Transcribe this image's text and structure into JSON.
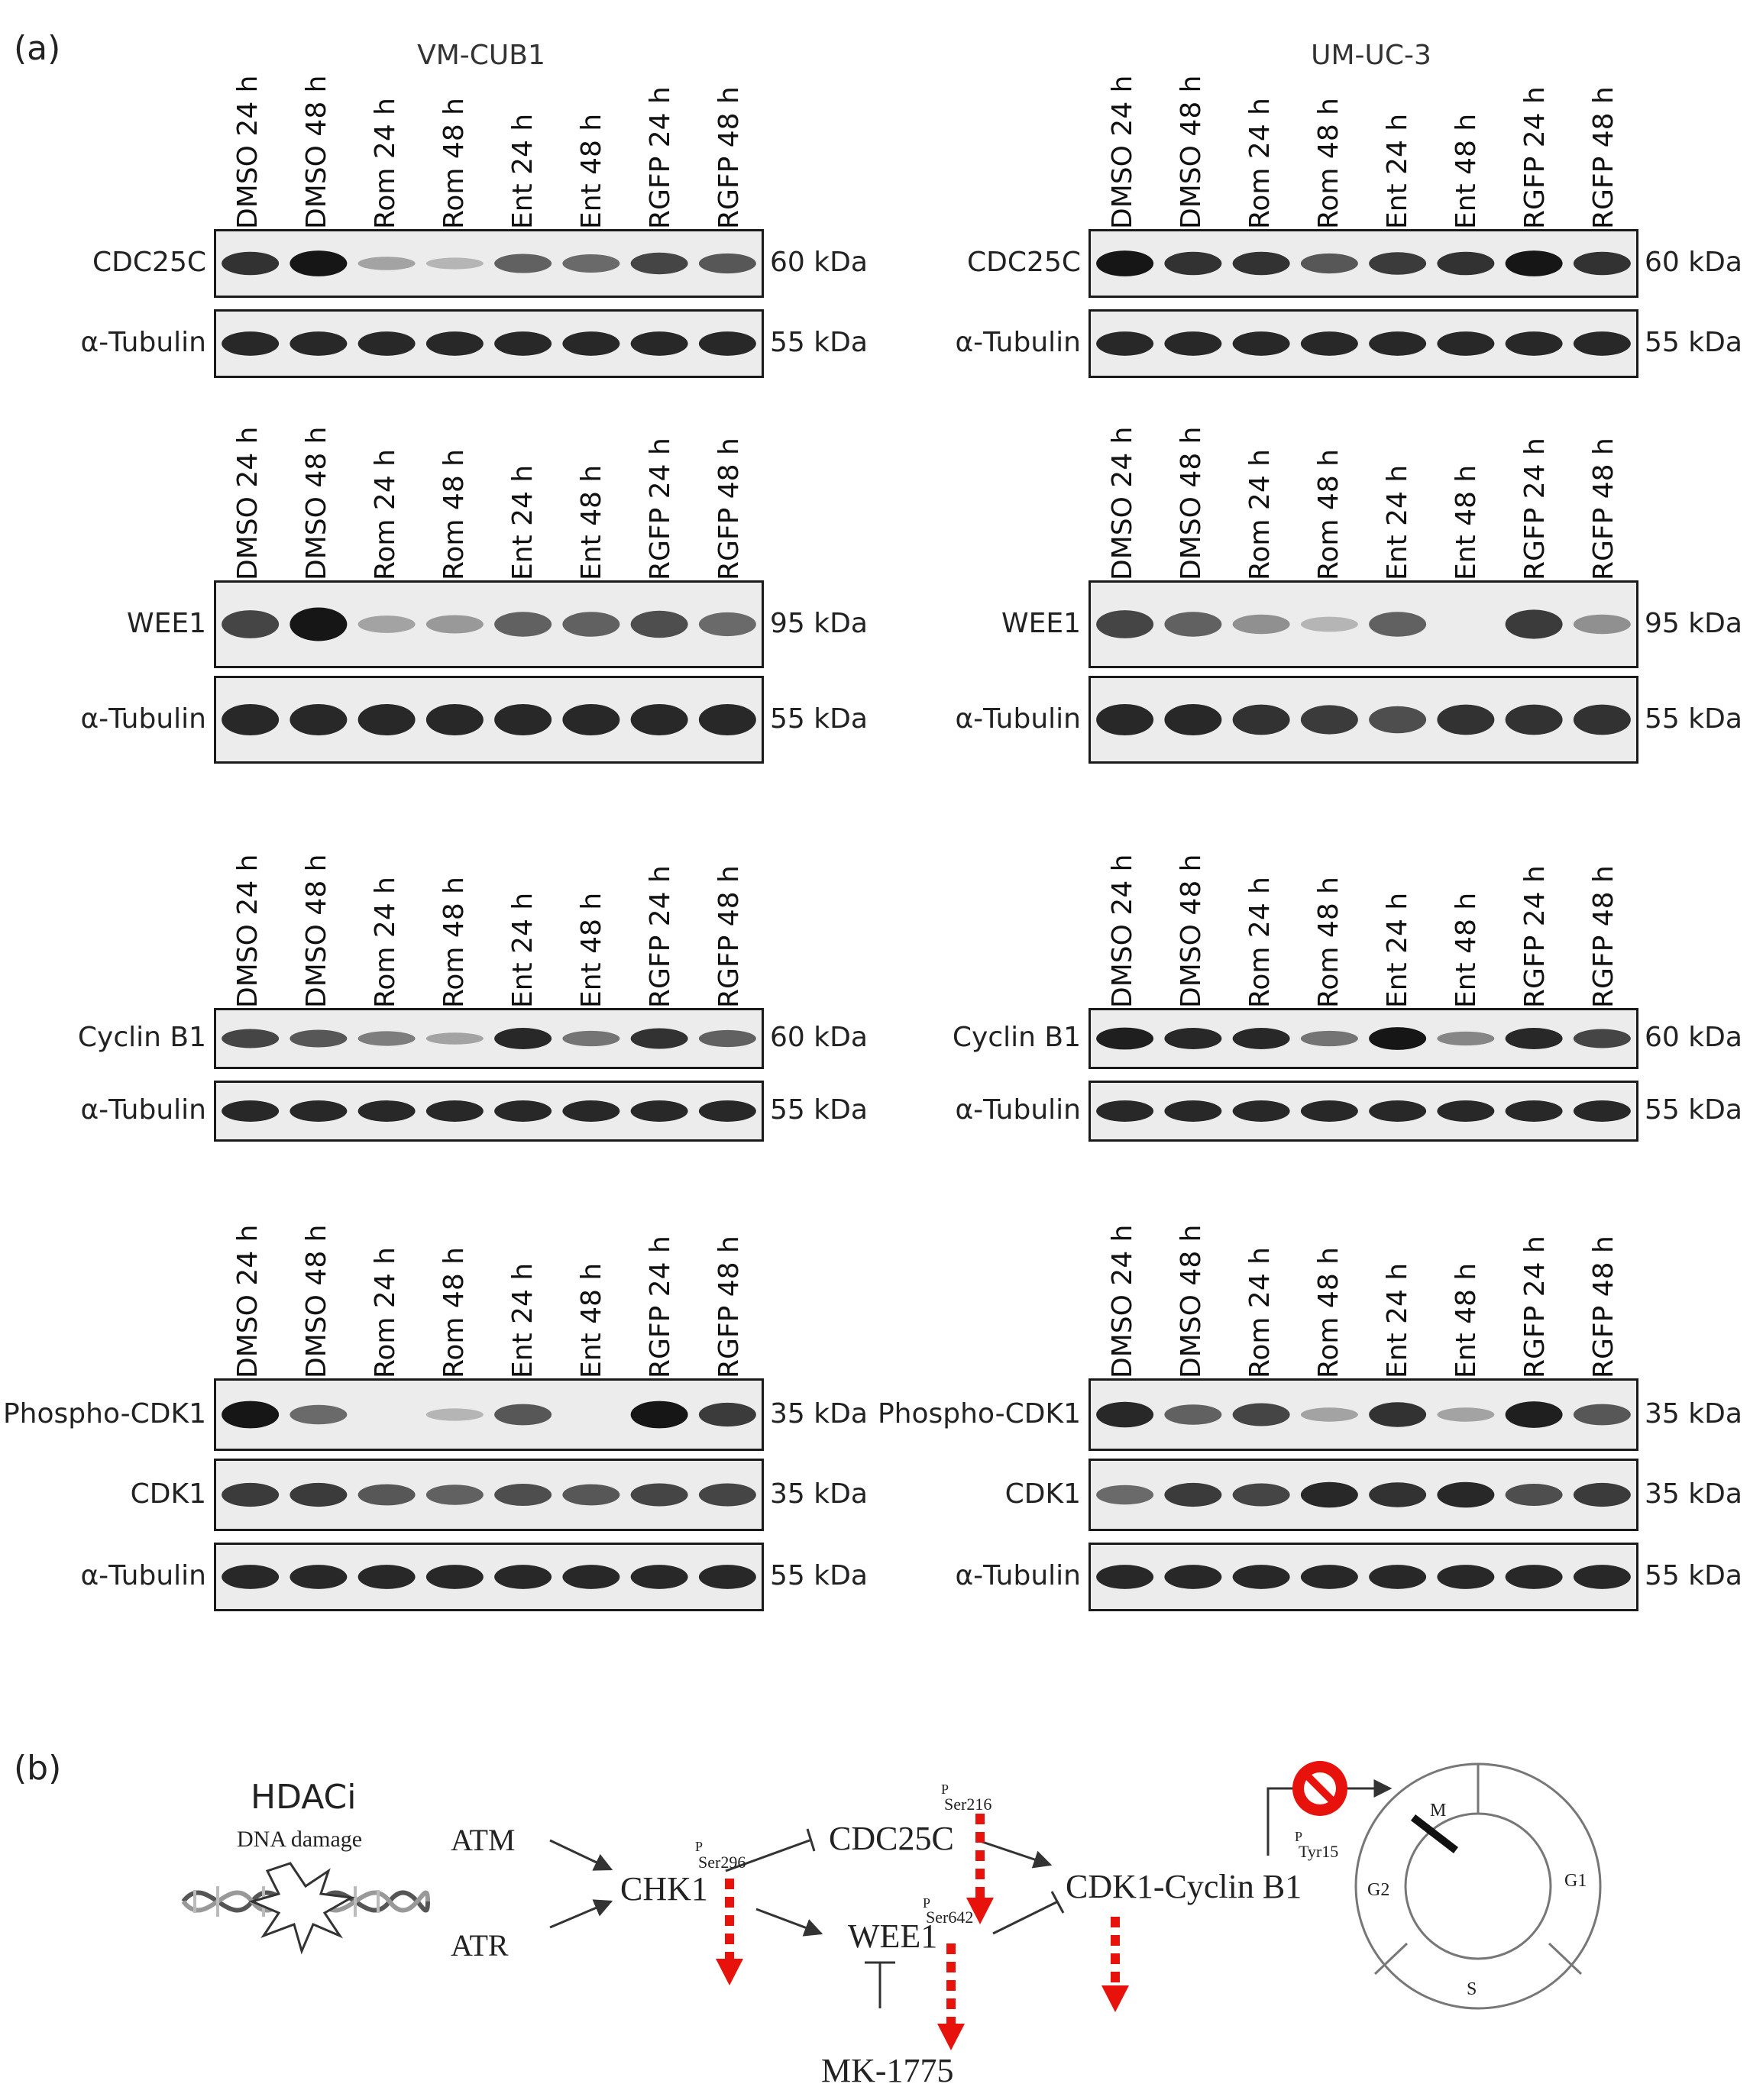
{
  "panel_a_label": "(a)",
  "panel_b_label": "(b)",
  "cell_lines": [
    "VM-CUB1",
    "UM-UC-3"
  ],
  "lanes": [
    "DMSO 24 h",
    "DMSO 48 h",
    "Rom 24 h",
    "Rom 48 h",
    "Ent 24 h",
    "Ent 48 h",
    "RGFP 24 h",
    "RGFP 48 h"
  ],
  "groups": [
    {
      "rows": [
        {
          "label": "CDC25C",
          "mw": "60 kDa"
        },
        {
          "label": "α-Tubulin",
          "mw": "55 kDa"
        }
      ]
    },
    {
      "rows": [
        {
          "label": "WEE1",
          "mw": "95 kDa"
        },
        {
          "label": "α-Tubulin",
          "mw": "55 kDa"
        }
      ]
    },
    {
      "rows": [
        {
          "label": "Cyclin B1",
          "mw": "60 kDa"
        },
        {
          "label": "α-Tubulin",
          "mw": "55 kDa"
        }
      ]
    },
    {
      "rows": [
        {
          "label": "Phospho-CDK1",
          "mw": "35 kDa"
        },
        {
          "label": "CDK1",
          "mw": "35 kDa"
        },
        {
          "label": "α-Tubulin",
          "mw": "55 kDa"
        }
      ]
    }
  ],
  "band_intensity": {
    "VM-CUB1": [
      [
        [
          0.8,
          0.95,
          0.2,
          0.1,
          0.55,
          0.5,
          0.7,
          0.6
        ],
        [
          0.85,
          0.85,
          0.85,
          0.85,
          0.85,
          0.85,
          0.85,
          0.85
        ]
      ],
      [
        [
          0.7,
          0.95,
          0.2,
          0.25,
          0.55,
          0.55,
          0.65,
          0.5
        ],
        [
          0.85,
          0.85,
          0.85,
          0.85,
          0.85,
          0.85,
          0.85,
          0.85
        ]
      ],
      [
        [
          0.7,
          0.6,
          0.4,
          0.2,
          0.85,
          0.45,
          0.8,
          0.55
        ],
        [
          0.85,
          0.85,
          0.85,
          0.85,
          0.85,
          0.85,
          0.85,
          0.85
        ]
      ],
      [
        [
          0.95,
          0.5,
          0.0,
          0.1,
          0.6,
          0.0,
          0.95,
          0.75
        ],
        [
          0.75,
          0.75,
          0.6,
          0.55,
          0.65,
          0.6,
          0.7,
          0.7
        ],
        [
          0.85,
          0.85,
          0.85,
          0.85,
          0.85,
          0.85,
          0.85,
          0.85
        ]
      ]
    ],
    "UM-UC-3": [
      [
        [
          0.95,
          0.8,
          0.8,
          0.6,
          0.75,
          0.8,
          0.95,
          0.8
        ],
        [
          0.85,
          0.85,
          0.85,
          0.85,
          0.85,
          0.85,
          0.85,
          0.85
        ]
      ],
      [
        [
          0.7,
          0.55,
          0.3,
          0.1,
          0.55,
          0.0,
          0.75,
          0.3
        ],
        [
          0.85,
          0.85,
          0.8,
          0.75,
          0.65,
          0.8,
          0.8,
          0.8
        ]
      ],
      [
        [
          0.9,
          0.85,
          0.85,
          0.45,
          0.95,
          0.35,
          0.85,
          0.7
        ],
        [
          0.85,
          0.85,
          0.85,
          0.85,
          0.85,
          0.85,
          0.85,
          0.85
        ]
      ],
      [
        [
          0.85,
          0.55,
          0.7,
          0.2,
          0.8,
          0.2,
          0.9,
          0.6
        ],
        [
          0.5,
          0.75,
          0.7,
          0.85,
          0.8,
          0.85,
          0.65,
          0.75
        ],
        [
          0.85,
          0.85,
          0.85,
          0.85,
          0.85,
          0.85,
          0.85,
          0.85
        ]
      ]
    ]
  },
  "diagram": {
    "hdaci": "HDACi",
    "dna_damage": "DNA damage",
    "atm": "ATM",
    "atr": "ATR",
    "chk1": "CHK1",
    "cdc25c": "CDC25C",
    "wee1": "WEE1",
    "cdk1_cyclin": "CDK1-Cyclin B1",
    "mk1775": "MK-1775",
    "p": "P",
    "ser296": "Ser296",
    "ser216": "Ser216",
    "ser642": "Ser642",
    "tyr15": "Tyr15",
    "phase_m": "M",
    "phase_g1": "G1",
    "phase_s": "S",
    "phase_g2": "G2",
    "arrow_color": "#e8120c",
    "stop_color": "#e8120c"
  }
}
